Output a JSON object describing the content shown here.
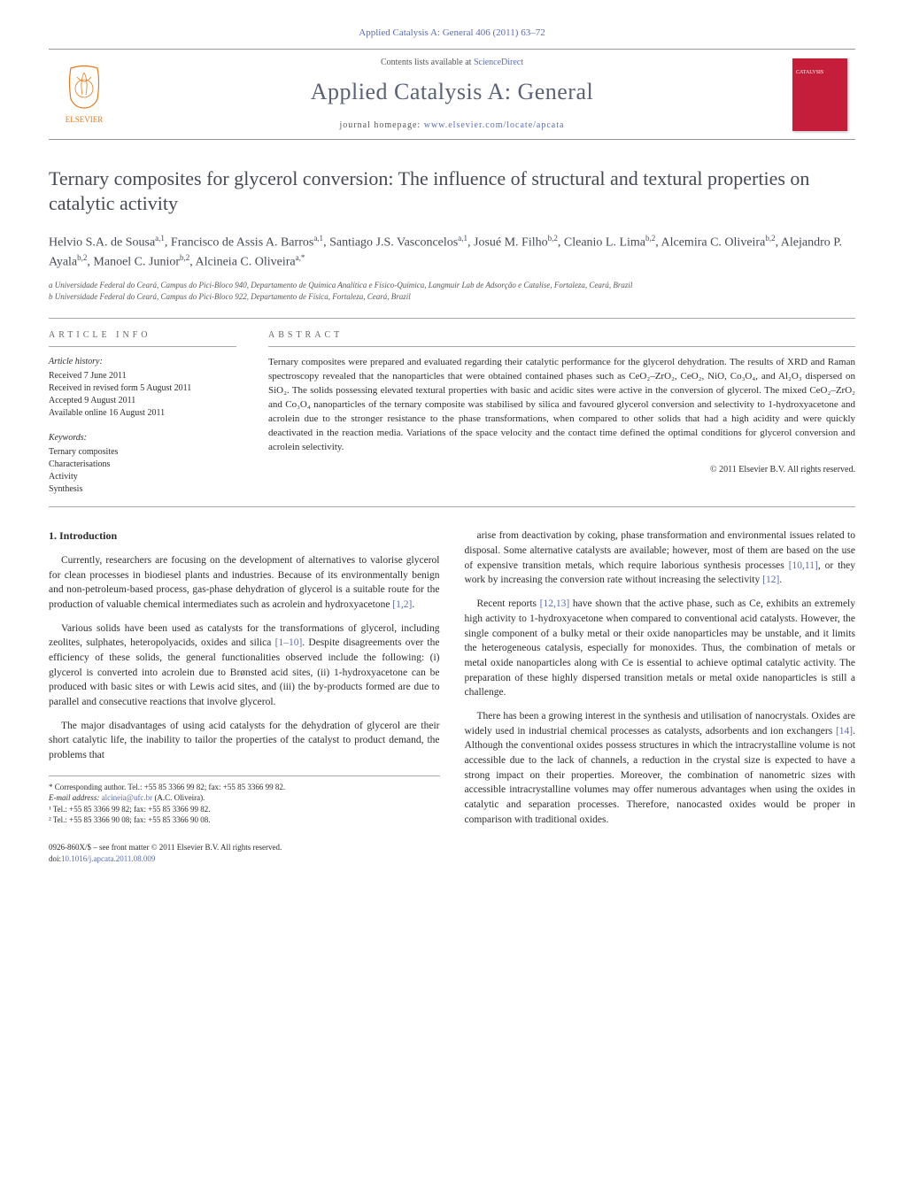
{
  "header": {
    "citation": "Applied Catalysis A: General 406 (2011) 63–72",
    "contents_prefix": "Contents lists available at ",
    "contents_link": "ScienceDirect",
    "journal_name": "Applied Catalysis A: General",
    "homepage_prefix": "journal homepage: ",
    "homepage_link": "www.elsevier.com/locate/apcata",
    "publisher_logo_label": "ELSEVIER",
    "cover_label": "CATALYSIS"
  },
  "article": {
    "title": "Ternary composites for glycerol conversion: The influence of structural and textural properties on catalytic activity",
    "authors_html": "Helvio S.A. de Sousa<sup>a,1</sup>, Francisco de Assis A. Barros<sup>a,1</sup>, Santiago J.S. Vasconcelos<sup>a,1</sup>, Josué M. Filho<sup>b,2</sup>, Cleanio L. Lima<sup>b,2</sup>, Alcemira C. Oliveira<sup>b,2</sup>, Alejandro P. Ayala<sup>b,2</sup>, Manoel C. Junior<sup>b,2</sup>, Alcineia C. Oliveira<sup>a,*</sup>",
    "affiliations": [
      "a Universidade Federal do Ceará, Campus do Pici-Bloco 940, Departamento de Química Analítica e Físico-Química, Langmuir Lab de Adsorção e Catalise, Fortaleza, Ceará, Brazil",
      "b Universidade Federal do Ceará, Campus do Pici-Bloco 922, Departamento de Física, Fortaleza, Ceará, Brazil"
    ]
  },
  "info": {
    "section_label": "ARTICLE INFO",
    "history_label": "Article history:",
    "history": [
      "Received 7 June 2011",
      "Received in revised form 5 August 2011",
      "Accepted 9 August 2011",
      "Available online 16 August 2011"
    ],
    "keywords_label": "Keywords:",
    "keywords": [
      "Ternary composites",
      "Characterisations",
      "Activity",
      "Synthesis"
    ]
  },
  "abstract": {
    "section_label": "ABSTRACT",
    "text": "Ternary composites were prepared and evaluated regarding their catalytic performance for the glycerol dehydration. The results of XRD and Raman spectroscopy revealed that the nanoparticles that were obtained contained phases such as CeO₂–ZrO₂, CeO₂, NiO, Co₃O₄, and Al₂O₃ dispersed on SiO₂. The solids possessing elevated textural properties with basic and acidic sites were active in the conversion of glycerol. The mixed CeO₂–ZrO₂ and Co₃O₄ nanoparticles of the ternary composite was stabilised by silica and favoured glycerol conversion and selectivity to 1-hydroxyacetone and acrolein due to the stronger resistance to the phase transformations, when compared to other solids that had a high acidity and were quickly deactivated in the reaction media. Variations of the space velocity and the contact time defined the optimal conditions for glycerol conversion and acrolein selectivity.",
    "copyright": "© 2011 Elsevier B.V. All rights reserved."
  },
  "body": {
    "section_title": "1.  Introduction",
    "left_paragraphs": [
      "Currently, researchers are focusing on the development of alternatives to valorise glycerol for clean processes in biodiesel plants and industries. Because of its environmentally benign and non-petroleum-based process, gas-phase dehydration of glycerol is a suitable route for the production of valuable chemical intermediates such as acrolein and hydroxyacetone [1,2].",
      "Various solids have been used as catalysts for the transformations of glycerol, including zeolites, sulphates, heteropolyacids, oxides and silica [1–10]. Despite disagreements over the efficiency of these solids, the general functionalities observed include the following: (i) glycerol is converted into acrolein due to Brønsted acid sites, (ii) 1-hydroxyacetone can be produced with basic sites or with Lewis acid sites, and (iii) the by-products formed are due to parallel and consecutive reactions that involve glycerol.",
      "The major disadvantages of using acid catalysts for the dehydration of glycerol are their short catalytic life, the inability to tailor the properties of the catalyst to product demand, the problems that"
    ],
    "right_paragraphs": [
      "arise from deactivation by coking, phase transformation and environmental issues related to disposal. Some alternative catalysts are available; however, most of them are based on the use of expensive transition metals, which require laborious synthesis processes [10,11], or they work by increasing the conversion rate without increasing the selectivity [12].",
      "Recent reports [12,13] have shown that the active phase, such as Ce, exhibits an extremely high activity to 1-hydroxyacetone when compared to conventional acid catalysts. However, the single component of a bulky metal or their oxide nanoparticles may be unstable, and it limits the heterogeneous catalysis, especially for monoxides. Thus, the combination of metals or metal oxide nanoparticles along with Ce is essential to achieve optimal catalytic activity. The preparation of these highly dispersed transition metals or metal oxide nanoparticles is still a challenge.",
      "There has been a growing interest in the synthesis and utilisation of nanocrystals. Oxides are widely used in industrial chemical processes as catalysts, adsorbents and ion exchangers [14]. Although the conventional oxides possess structures in which the intracrystalline volume is not accessible due to the lack of channels, a reduction in the crystal size is expected to have a strong impact on their properties. Moreover, the combination of nanometric sizes with accessible intracrystalline volumes may offer numerous advantages when using the oxides in catalytic and separation processes. Therefore, nanocasted oxides would be proper in comparison with traditional oxides."
    ],
    "ref_links": [
      "[1,2]",
      "[1–10]",
      "[10,11]",
      "[12]",
      "[12,13]",
      "[14]"
    ]
  },
  "footnotes": {
    "corresponding": "* Corresponding author. Tel.: +55 85 3366 99 82; fax: +55 85 3366 99 82.",
    "email_label": "E-mail address: ",
    "email": "alcineia@ufc.br",
    "email_suffix": " (A.C. Oliveira).",
    "note1": "¹ Tel.: +55 85 3366 99 82; fax: +55 85 3366 99 82.",
    "note2": "² Tel.: +55 85 3366 90 08; fax: +55 85 3366 90 08."
  },
  "footer": {
    "issn_line": "0926-860X/$ – see front matter © 2011 Elsevier B.V. All rights reserved.",
    "doi_label": "doi:",
    "doi": "10.1016/j.apcata.2011.08.009"
  },
  "colors": {
    "link": "#5a6db5",
    "heading": "#454a56",
    "cover_bg": "#c41e3a",
    "text": "#2c2c2c",
    "muted": "#666"
  }
}
